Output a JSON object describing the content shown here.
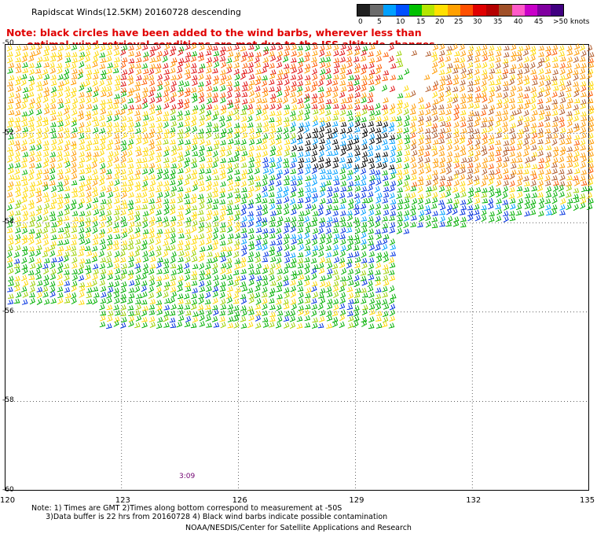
{
  "header": {
    "title": "Rapidscat Winds(12.5KM) 20160728 descending",
    "note_line1": "Note: black circles have been added to the wind barbs, wherever less than",
    "note_line2": "      optimal wind retrieval conditions are met due to the ISS altitude changes."
  },
  "legend": {
    "unit": "knots",
    "labels": [
      "0",
      "5",
      "10",
      "15",
      "20",
      "25",
      "30",
      "35",
      "40",
      "45",
      ">50 knots"
    ],
    "colors": [
      "#202020",
      "#6b6b6b",
      "#00a0ff",
      "#0050ff",
      "#00c000",
      "#b4e600",
      "#ffe000",
      "#ffa000",
      "#ff5000",
      "#e00000",
      "#b40000",
      "#a05028",
      "#ff5ac8",
      "#c800c8",
      "#8000a0",
      "#400080"
    ]
  },
  "axes": {
    "y_labels": [
      "-50",
      "-52",
      "-54",
      "-56",
      "-58",
      "-60"
    ],
    "x_labels": [
      "120",
      "123",
      "126",
      "129",
      "132",
      "135"
    ]
  },
  "map": {
    "lat_range": [
      -60,
      -50
    ],
    "lon_range": [
      120,
      135
    ],
    "time_label": "3:09"
  },
  "footer": {
    "note_line1": "Note: 1) Times are GMT 2)Times along bottom correspond to measurement at -50S",
    "note_line2": "      3)Data buffer is 22 hrs from 20160728 4) Black wind barbs indicate possible contamination",
    "credit": "NOAA/NESDIS/Center for Satellite Applications and Research"
  }
}
